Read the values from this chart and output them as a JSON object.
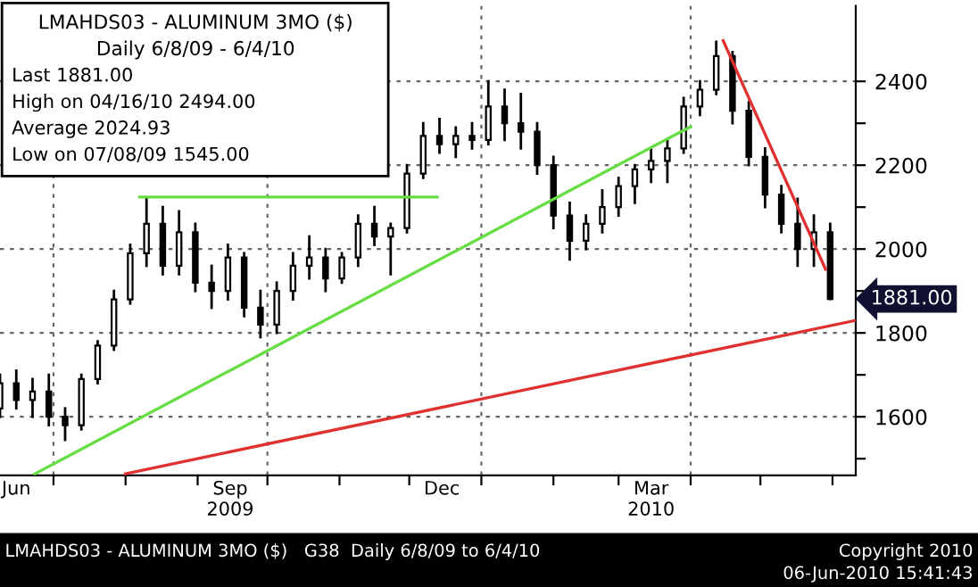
{
  "chart_data": {
    "type": "candlestick",
    "title": "LMAHDS03 - ALUMINUM 3MO ($)",
    "subtitle": "Daily 6/8/09 - 6/4/10",
    "color": "#000000",
    "x": [
      "2009-06-08",
      "2009-06-15",
      "2009-06-22",
      "2009-06-29",
      "2009-07-06",
      "2009-07-13",
      "2009-07-20",
      "2009-07-27",
      "2009-08-03",
      "2009-08-10",
      "2009-08-17",
      "2009-08-24",
      "2009-08-31",
      "2009-09-07",
      "2009-09-14",
      "2009-09-21",
      "2009-09-28",
      "2009-10-05",
      "2009-10-12",
      "2009-10-19",
      "2009-10-26",
      "2009-11-02",
      "2009-11-09",
      "2009-11-16",
      "2009-11-23",
      "2009-11-30",
      "2009-12-07",
      "2009-12-14",
      "2009-12-21",
      "2009-12-28",
      "2010-01-04",
      "2010-01-11",
      "2010-01-18",
      "2010-01-25",
      "2010-02-01",
      "2010-02-08",
      "2010-02-15",
      "2010-02-22",
      "2010-03-01",
      "2010-03-08",
      "2010-03-15",
      "2010-03-22",
      "2010-03-29",
      "2010-04-05",
      "2010-04-12",
      "2010-04-19",
      "2010-04-26",
      "2010-05-03",
      "2010-05-10",
      "2010-05-17",
      "2010-05-24",
      "2010-05-31"
    ],
    "ohlc": [
      [
        1620,
        1700,
        1600,
        1680
      ],
      [
        1680,
        1710,
        1620,
        1640
      ],
      [
        1640,
        1690,
        1600,
        1660
      ],
      [
        1660,
        1700,
        1580,
        1600
      ],
      [
        1600,
        1620,
        1545,
        1580
      ],
      [
        1580,
        1700,
        1570,
        1690
      ],
      [
        1690,
        1780,
        1680,
        1770
      ],
      [
        1770,
        1900,
        1760,
        1880
      ],
      [
        1880,
        2010,
        1870,
        1990
      ],
      [
        1990,
        2120,
        1960,
        2060
      ],
      [
        2060,
        2100,
        1940,
        1960
      ],
      [
        1960,
        2090,
        1940,
        2040
      ],
      [
        2040,
        2060,
        1900,
        1920
      ],
      [
        1920,
        1960,
        1860,
        1900
      ],
      [
        1900,
        2010,
        1880,
        1980
      ],
      [
        1980,
        1990,
        1840,
        1860
      ],
      [
        1860,
        1900,
        1790,
        1820
      ],
      [
        1820,
        1920,
        1800,
        1900
      ],
      [
        1900,
        1990,
        1880,
        1960
      ],
      [
        1960,
        2030,
        1930,
        1980
      ],
      [
        1980,
        2000,
        1900,
        1930
      ],
      [
        1930,
        1990,
        1920,
        1980
      ],
      [
        1980,
        2080,
        1960,
        2060
      ],
      [
        2060,
        2100,
        2010,
        2030
      ],
      [
        2030,
        2060,
        1940,
        2050
      ],
      [
        2050,
        2200,
        2040,
        2180
      ],
      [
        2180,
        2300,
        2170,
        2270
      ],
      [
        2270,
        2310,
        2230,
        2250
      ],
      [
        2250,
        2290,
        2220,
        2270
      ],
      [
        2270,
        2300,
        2240,
        2260
      ],
      [
        2260,
        2400,
        2250,
        2340
      ],
      [
        2340,
        2380,
        2260,
        2300
      ],
      [
        2300,
        2370,
        2240,
        2280
      ],
      [
        2280,
        2300,
        2180,
        2200
      ],
      [
        2200,
        2220,
        2050,
        2080
      ],
      [
        2080,
        2110,
        1975,
        2020
      ],
      [
        2020,
        2080,
        2000,
        2060
      ],
      [
        2060,
        2140,
        2040,
        2100
      ],
      [
        2100,
        2170,
        2080,
        2150
      ],
      [
        2150,
        2200,
        2110,
        2190
      ],
      [
        2190,
        2240,
        2160,
        2210
      ],
      [
        2210,
        2260,
        2160,
        2240
      ],
      [
        2240,
        2360,
        2230,
        2340
      ],
      [
        2340,
        2400,
        2320,
        2380
      ],
      [
        2380,
        2494,
        2370,
        2460
      ],
      [
        2460,
        2470,
        2300,
        2330
      ],
      [
        2330,
        2350,
        2200,
        2220
      ],
      [
        2220,
        2240,
        2100,
        2130
      ],
      [
        2130,
        2150,
        2040,
        2060
      ],
      [
        2060,
        2120,
        1960,
        2000
      ],
      [
        2000,
        2080,
        1960,
        2040
      ],
      [
        2040,
        2060,
        1881,
        1881
      ]
    ],
    "series": [
      {
        "type": "line",
        "color": "#66dd44",
        "x": [
          "2009-08-07",
          "2009-12-13"
        ],
        "values": [
          2124,
          2124
        ]
      },
      {
        "type": "line",
        "color": "#66dd44",
        "x": [
          "2009-06-23",
          "2010-04-01"
        ],
        "values": [
          1464,
          2292
        ]
      },
      {
        "type": "line",
        "color": "#e03030",
        "x": [
          "2009-08-01",
          "2010-06-11"
        ],
        "values": [
          1464,
          1830
        ]
      },
      {
        "type": "line",
        "color": "#e03030",
        "x": [
          "2010-04-15",
          "2010-05-29"
        ],
        "values": [
          2497,
          1952
        ]
      }
    ],
    "xlim": [
      "2009-06-08",
      "2010-06-11"
    ],
    "xticks": [
      {
        "value": "2009-07-01",
        "label": null
      },
      {
        "value": "2009-08-01",
        "label": null
      },
      {
        "value": "2009-09-01",
        "label": null
      },
      {
        "value": "2009-10-01",
        "label": null
      },
      {
        "value": "2009-11-01",
        "label": null
      },
      {
        "value": "2009-12-01",
        "label": null
      },
      {
        "value": "2010-01-01",
        "label": null
      },
      {
        "value": "2010-02-01",
        "label": null
      },
      {
        "value": "2010-03-01",
        "label": null
      },
      {
        "value": "2010-04-01",
        "label": null
      },
      {
        "value": "2010-05-01",
        "label": null
      },
      {
        "value": "2010-06-01",
        "label": null
      },
      {
        "value": "2009-06-15",
        "label": "Jun"
      },
      {
        "value": "2009-09-15",
        "label": "Sep\n2009"
      },
      {
        "value": "2009-12-15",
        "label": "Dec"
      },
      {
        "value": "2010-03-15",
        "label": "Mar\n2010"
      }
    ],
    "ylim": [
      1460,
      2580
    ],
    "yticks": [
      {
        "value": 1500,
        "label": null
      },
      1600,
      {
        "value": 1700,
        "label": null
      },
      1800,
      {
        "value": 1900,
        "label": null
      },
      2000,
      {
        "value": 2100,
        "label": null
      },
      2200,
      {
        "value": 2300,
        "label": null
      },
      2400
    ],
    "grid": true,
    "annotations": [
      "1881.00",
      "Last 1881.00",
      "High on 04/16/10 2494.00",
      "Average 2024.93",
      "Low on 07/08/09 1545.00",
      "LMAHDS03 - ALUMINUM 3MO ($)   G38  Daily 6/8/09 to 6/4/10",
      "Copyright 2010",
      "06-Jun-2010 15:41:43"
    ]
  }
}
